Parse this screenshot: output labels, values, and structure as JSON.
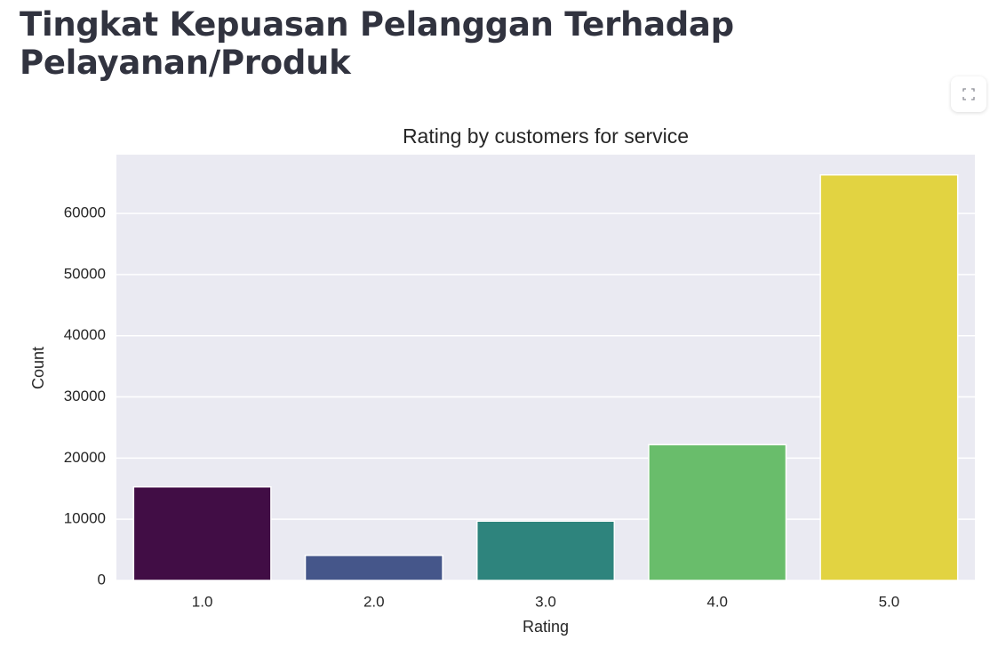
{
  "page_title": "Tingkat Kepuasan Pelanggan Terhadap Pelayanan/Produk",
  "chart_data": {
    "type": "bar",
    "title": "Rating by customers for service",
    "x_label": "Rating",
    "y_label": "Count",
    "categories": [
      "1.0",
      "2.0",
      "3.0",
      "4.0",
      "5.0"
    ],
    "values": [
      15300,
      4100,
      9700,
      22200,
      66300
    ],
    "colors": [
      "#410d45",
      "#45568a",
      "#2e847d",
      "#69bd6b",
      "#e2d341"
    ],
    "ylim": [
      0,
      69600
    ],
    "yticks": [
      0,
      10000,
      20000,
      30000,
      40000,
      50000,
      60000
    ],
    "grid": true
  }
}
